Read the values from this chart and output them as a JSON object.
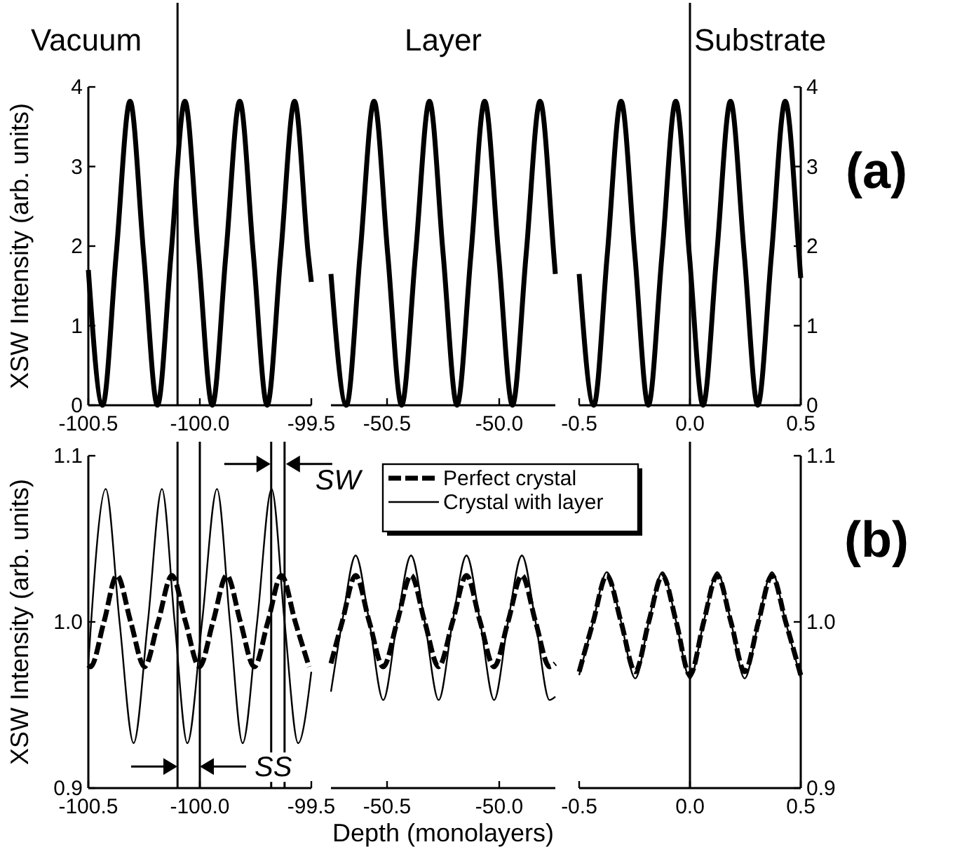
{
  "chart_data": [
    {
      "type": "line",
      "title": "Vacuum",
      "ylabel": "XSW Intensity (arb. units)",
      "xlim": [
        -100.5,
        -99.5
      ],
      "xticks": [
        -100.5,
        {
          "value": -100,
          "label": "-100.0"
        },
        -99.5
      ],
      "ylim": [
        0,
        4
      ],
      "yticks": [
        0,
        1,
        2,
        3,
        4
      ],
      "ref_lines": [
        {
          "axis": "x",
          "value": -100.1
        }
      ],
      "series": [
        {
          "color": "#000000",
          "x": [
            -100.5,
            -100.436,
            -100.375,
            -100.313,
            -100.252,
            -100.19,
            -100.129,
            -100.067,
            -100.006,
            -99.944,
            -99.883,
            -99.821,
            -99.76,
            -99.698,
            -99.637,
            -99.575,
            -99.514,
            -99.5
          ],
          "values": [
            1.7,
            0,
            1.9,
            3.82,
            1.9,
            0,
            1.9,
            3.82,
            1.9,
            0,
            1.9,
            3.82,
            1.9,
            0,
            1.9,
            3.82,
            1.9,
            1.55
          ]
        }
      ]
    },
    {
      "type": "line",
      "title": "Layer",
      "tick_labels": "x",
      "xlim": [
        -50.75,
        -49.75
      ],
      "xticks": [
        -50.5,
        {
          "value": -50,
          "label": "-50.0"
        }
      ],
      "ylim": [
        0,
        4
      ],
      "series": [
        {
          "color": "#000000",
          "x": [
            -50.75,
            -50.681,
            -50.62,
            -50.558,
            -50.497,
            -50.435,
            -50.373,
            -50.311,
            -50.25,
            -50.188,
            -50.126,
            -50.065,
            -50.003,
            -49.941,
            -49.88,
            -49.818,
            -49.757,
            -49.75
          ],
          "values": [
            1.65,
            0,
            1.9,
            3.82,
            1.9,
            0,
            1.9,
            3.82,
            1.9,
            0,
            1.9,
            3.82,
            1.9,
            0,
            1.9,
            3.82,
            1.9,
            1.65
          ]
        }
      ]
    },
    {
      "type": "line",
      "title": "Substrate",
      "annotations": [
        "(a)"
      ],
      "xlim": [
        -0.5,
        0.5
      ],
      "xticks": [
        -0.5,
        {
          "value": 0,
          "label": "0.0"
        },
        0.5
      ],
      "y2lim": [
        0,
        4
      ],
      "y2ticks": [
        0,
        1,
        2,
        3,
        4
      ],
      "ref_lines": [
        {
          "axis": "x",
          "value": 0
        }
      ],
      "series": [
        {
          "color": "#000000",
          "axis": "y2",
          "x": [
            -0.5,
            -0.434,
            -0.373,
            -0.311,
            -0.249,
            -0.188,
            -0.126,
            -0.064,
            -0.003,
            0.059,
            0.121,
            0.183,
            0.245,
            0.306,
            0.368,
            0.43,
            0.492,
            0.5
          ],
          "values": [
            1.65,
            0,
            1.9,
            3.82,
            1.9,
            0,
            1.9,
            3.82,
            1.9,
            0,
            1.9,
            3.82,
            1.9,
            0,
            1.9,
            3.82,
            1.9,
            1.6
          ]
        }
      ]
    },
    {
      "type": "line",
      "ylabel": "XSW Intensity (arb. units)",
      "annotations": [
        {
          "text": "SW",
          "x": -99.62,
          "y": 1.095
        },
        {
          "text": "SS",
          "x": -100.0,
          "y": 0.913
        }
      ],
      "xlim": [
        -100.5,
        -99.5
      ],
      "xticks": [
        -100.5,
        {
          "value": -100,
          "label": "-100.0"
        },
        -99.5
      ],
      "ylim": [
        0.9,
        1.1
      ],
      "yticks": [
        0.9,
        {
          "value": 1.0,
          "label": "1.0"
        },
        1.1
      ],
      "ref_lines": [
        {
          "axis": "x",
          "value": -100.1
        },
        {
          "axis": "x",
          "value": -100.0
        },
        {
          "axis": "x",
          "value": -99.68
        },
        {
          "axis": "x",
          "value": -99.62
        }
      ],
      "series": [
        {
          "color": "#000000",
          "line_style": "dashed",
          "x": [
            -100.5,
            -100.49,
            -100.43,
            -100.372,
            -100.31,
            -100.248,
            -100.187,
            -100.125,
            -100.064,
            -100.002,
            -99.941,
            -99.879,
            -99.818,
            -99.756,
            -99.695,
            -99.634,
            -99.572,
            -99.51
          ],
          "values": [
            0.974,
            0.973,
            1.0,
            1.028,
            1.0,
            0.973,
            1.0,
            1.028,
            1.0,
            0.973,
            1.0,
            1.028,
            1.0,
            0.973,
            1.0,
            1.028,
            1.0,
            0.973
          ]
        },
        {
          "color": "#000000",
          "line_style": "solid",
          "x": [
            -100.5,
            -100.422,
            -100.36,
            -100.297,
            -100.233,
            -100.17,
            -100.113,
            -100.056,
            -99.99,
            -99.923,
            -99.865,
            -99.808,
            -99.743,
            -99.678,
            -99.62,
            -99.559,
            -99.5
          ],
          "values": [
            0.975,
            1.08,
            1.0,
            0.927,
            1.0,
            1.08,
            1.0,
            0.927,
            1.0,
            1.08,
            1.0,
            0.927,
            1.0,
            1.08,
            1.0,
            0.927,
            0.97
          ]
        }
      ]
    },
    {
      "type": "line",
      "xlabel": "Depth (monolayers)",
      "tick_labels": "x",
      "legend": "top",
      "xlim": [
        -50.75,
        -49.75
      ],
      "xticks": [
        -50.5,
        {
          "value": -50,
          "label": "-50.0"
        }
      ],
      "ylim": [
        0.9,
        1.1
      ],
      "series": [
        {
          "name": "Perfect crystal",
          "color": "#000000",
          "line_style": "dashed",
          "x": [
            -50.75,
            -50.7,
            -50.64,
            -50.579,
            -50.517,
            -50.455,
            -50.393,
            -50.332,
            -50.27,
            -50.208,
            -50.146,
            -50.085,
            -50.023,
            -49.961,
            -49.899,
            -49.838,
            -49.776,
            -49.75
          ],
          "values": [
            0.975,
            1.0,
            1.028,
            1.0,
            0.973,
            1.0,
            1.028,
            1.0,
            0.973,
            1.0,
            1.028,
            1.0,
            0.973,
            1.0,
            1.028,
            1.0,
            0.973,
            0.975
          ]
        },
        {
          "name": "Crystal with layer",
          "color": "#000000",
          "line_style": "solid",
          "x": [
            -50.75,
            -50.7,
            -50.64,
            -50.579,
            -50.517,
            -50.455,
            -50.393,
            -50.332,
            -50.27,
            -50.208,
            -50.146,
            -50.085,
            -50.023,
            -49.961,
            -49.899,
            -49.838,
            -49.776,
            -49.75
          ],
          "values": [
            0.958,
            1.0,
            1.04,
            1.0,
            0.953,
            1.0,
            1.04,
            1.0,
            0.953,
            1.0,
            1.04,
            1.0,
            0.953,
            1.0,
            1.04,
            1.0,
            0.953,
            0.955
          ]
        }
      ]
    },
    {
      "type": "line",
      "annotations": [
        "(b)"
      ],
      "xlim": [
        -0.5,
        0.5
      ],
      "xticks": [
        -0.5,
        {
          "value": 0,
          "label": "0.0"
        },
        0.5
      ],
      "y2lim": [
        0.9,
        1.1
      ],
      "y2ticks": [
        0.9,
        {
          "value": 1.0,
          "label": "1.0"
        },
        1.1
      ],
      "ref_lines": [
        {
          "axis": "x",
          "value": 0
        }
      ],
      "series": [
        {
          "color": "#000000",
          "axis": "y2",
          "line_style": "dashed",
          "x": [
            -0.5,
            -0.437,
            -0.375,
            -0.311,
            -0.247,
            -0.186,
            -0.124,
            -0.062,
            0.0,
            0.062,
            0.123,
            0.185,
            0.247,
            0.309,
            0.37,
            0.432,
            0.5
          ],
          "values": [
            0.97,
            1.0,
            1.028,
            1.0,
            0.97,
            1.0,
            1.028,
            1.0,
            0.968,
            1.0,
            1.028,
            1.0,
            0.97,
            1.0,
            1.028,
            1.0,
            0.968
          ]
        },
        {
          "color": "#000000",
          "axis": "y2",
          "line_style": "solid",
          "x": [
            -0.5,
            -0.437,
            -0.375,
            -0.311,
            -0.247,
            -0.186,
            -0.124,
            -0.062,
            0.0,
            0.062,
            0.123,
            0.185,
            0.247,
            0.309,
            0.37,
            0.432,
            0.5
          ],
          "values": [
            0.968,
            1.0,
            1.03,
            1.0,
            0.966,
            1.0,
            1.03,
            1.0,
            0.966,
            1.0,
            1.03,
            1.0,
            0.966,
            1.0,
            1.03,
            1.0,
            0.966
          ]
        }
      ]
    }
  ]
}
